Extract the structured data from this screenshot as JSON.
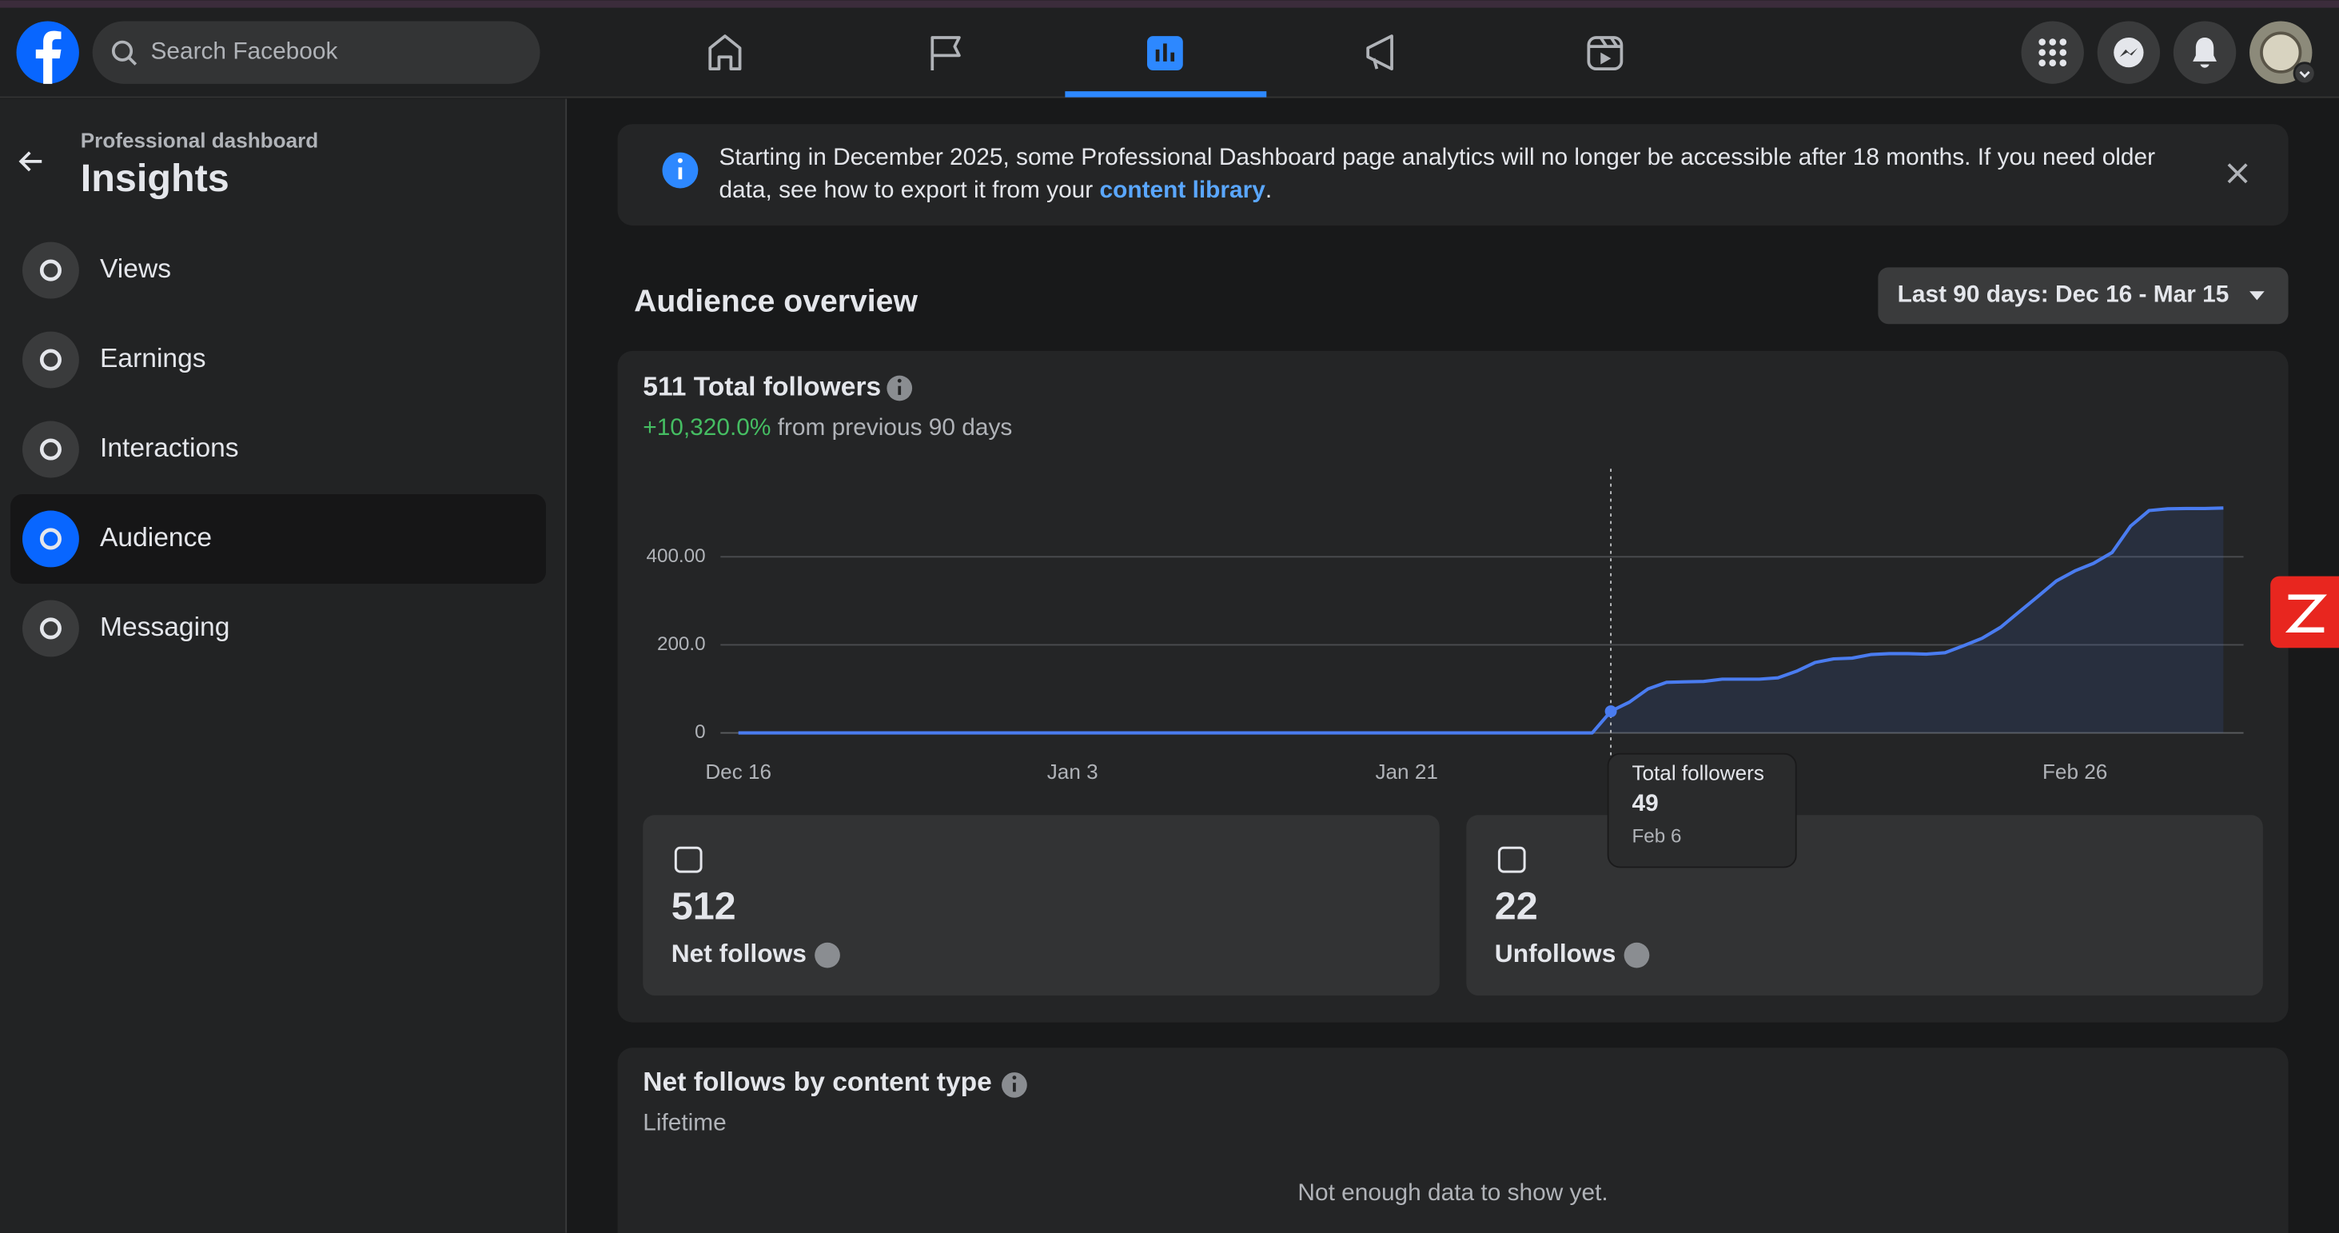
{
  "header": {
    "search_placeholder": "Search Facebook"
  },
  "sidebar": {
    "subtitle": "Professional dashboard",
    "title": "Insights",
    "items": [
      "Views",
      "Earnings",
      "Interactions",
      "Audience",
      "Messaging"
    ]
  },
  "banner": {
    "line1": "Starting in December 2025, some Professional Dashboard page analytics will no longer be accessible after 18 months. If you need older",
    "line2": "data, see how to export it from your",
    "link": "content library",
    "line2_end": "."
  },
  "section_title": "Audience overview",
  "date_range": "Last 90 days: Dec 16 - Mar 15",
  "followers_card": {
    "title": "511 Total followers",
    "change": "+10,320.0%",
    "change_suffix": "from previous 90 days"
  },
  "chart_data": {
    "type": "line",
    "color": "#4a7cf0",
    "categories": [
      "Dec 16",
      null,
      null,
      null,
      null,
      null,
      null,
      null,
      null,
      null,
      null,
      null,
      null,
      null,
      null,
      null,
      null,
      null,
      "Jan 3",
      null,
      null,
      null,
      null,
      null,
      null,
      null,
      null,
      null,
      null,
      null,
      null,
      null,
      null,
      null,
      null,
      null,
      "Jan 21",
      null,
      null,
      null,
      null,
      null,
      null,
      null,
      null,
      null,
      null,
      null,
      null,
      null,
      null,
      null,
      null,
      null,
      null,
      null,
      null,
      null,
      null,
      null,
      null,
      null,
      null,
      null,
      null,
      null,
      null,
      null,
      null,
      null,
      null,
      null,
      "Feb 26",
      null,
      null,
      null,
      null,
      null,
      null,
      null,
      null
    ],
    "values": [
      0,
      0,
      0,
      0,
      0,
      0,
      0,
      0,
      0,
      0,
      0,
      0,
      0,
      0,
      0,
      0,
      0,
      0,
      0,
      0,
      0,
      0,
      0,
      0,
      0,
      0,
      0,
      0,
      0,
      0,
      0,
      0,
      0,
      0,
      0,
      0,
      0,
      0,
      0,
      0,
      0,
      0,
      0,
      0,
      0,
      0,
      0,
      49,
      70,
      100,
      115,
      116,
      117,
      122,
      122,
      122,
      125,
      140,
      160,
      168,
      170,
      178,
      180,
      180,
      179,
      182,
      198,
      215,
      240,
      275,
      310,
      345,
      368,
      385,
      410,
      470,
      505,
      509,
      510,
      510,
      511
    ],
    "ylim": [
      0,
      600
    ],
    "yticks": [
      0,
      {
        "value": 200,
        "label": "200.0"
      },
      {
        "value": 400,
        "label": "400.00"
      }
    ],
    "grid": true,
    "tooltip": {
      "label": "Total followers",
      "date": "Feb 6"
    }
  },
  "stats": [
    {
      "value": "512",
      "label": "Net follows"
    },
    {
      "value": "22",
      "label": "Unfollows"
    }
  ],
  "content_type_card": {
    "title": "Net follows by content type",
    "subtitle": "Lifetime",
    "empty": "Not enough data to show yet."
  }
}
